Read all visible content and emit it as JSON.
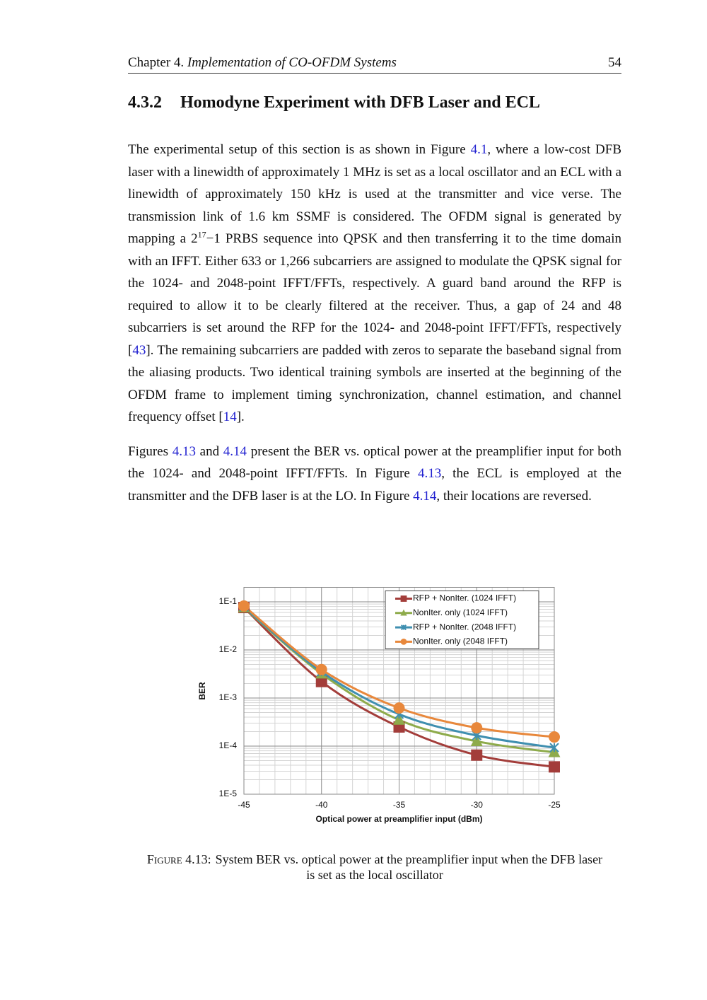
{
  "header": {
    "chapter": "Chapter 4.",
    "title": "Implementation of CO-OFDM Systems",
    "page": "54"
  },
  "section": {
    "number": "4.3.2",
    "title": "Homodyne Experiment with DFB Laser and ECL"
  },
  "paragraphs": [
    [
      {
        "text": "The experimental setup of this section is as shown in Figure "
      },
      {
        "text": "4.1",
        "color": "#2020d0"
      },
      {
        "text": ", where a low-cost DFB laser with a linewidth of approximately 1 MHz is set as a local oscillator and an ECL with a linewidth of approximately 150 kHz is used at the transmitter and vice verse. The transmission link of 1.6 km SSMF is considered. The OFDM signal is generated by mapping a 2"
      },
      {
        "text": "17",
        "sup": true
      },
      {
        "text": "−1 PRBS sequence into QPSK and then transferring it to the time domain with an IFFT. Either 633 or 1,266 subcarriers are assigned to modulate the QPSK signal for the 1024- and 2048-point IFFT/FFTs, respectively. A guard band around the RFP is required to allow it to be clearly filtered at the receiver. Thus, a gap of 24 and 48 subcarriers is set around the RFP for the 1024- and 2048-point IFFT/FFTs, respectively ["
      },
      {
        "text": "43",
        "color": "#2020d0"
      },
      {
        "text": "]. The remaining subcarriers are padded with zeros to separate the baseband signal from the aliasing products. Two identical training symbols are inserted at the beginning of the OFDM frame to implement timing synchronization, channel estimation, and channel frequency offset ["
      },
      {
        "text": "14",
        "color": "#2020d0"
      },
      {
        "text": "]."
      }
    ],
    [
      {
        "text": "Figures "
      },
      {
        "text": "4.13",
        "color": "#2020d0"
      },
      {
        "text": " and "
      },
      {
        "text": "4.14",
        "color": "#2020d0"
      },
      {
        "text": " present the BER vs. optical power at the preamplifier input for both the 1024- and 2048-point IFFT/FFTs. In Figure "
      },
      {
        "text": "4.13",
        "color": "#2020d0"
      },
      {
        "text": ", the ECL is employed at the transmitter and the DFB laser is at the LO. In Figure "
      },
      {
        "text": "4.14",
        "color": "#2020d0"
      },
      {
        "text": ", their locations are reversed."
      }
    ]
  ],
  "chart_data": {
    "type": "line",
    "xlabel": "Optical power at preamplifier input (dBm)",
    "ylabel": "BER",
    "x": [
      -45,
      -40,
      -35,
      -30,
      -25
    ],
    "xlim": [
      -45,
      -25
    ],
    "xticks": [
      -45,
      -40,
      -35,
      -30,
      -25
    ],
    "xminorticks": [
      -44,
      -43,
      -42,
      -41,
      -39,
      -38,
      -37,
      -36,
      -34,
      -33,
      -32,
      -31,
      -29,
      -28,
      -27,
      -26
    ],
    "ylim": [
      1e-05,
      0.2
    ],
    "yscale": "log",
    "yticks": [
      {
        "value": 1e-05,
        "label": "1E-5"
      },
      {
        "value": 0.0001,
        "label": "1E-4"
      },
      {
        "value": 0.001,
        "label": "1E-3"
      },
      {
        "value": 0.01,
        "label": "1E-2"
      },
      {
        "value": 0.1,
        "label": "1E-1"
      }
    ],
    "yminorticks": [
      2e-05,
      3e-05,
      4e-05,
      5e-05,
      6e-05,
      7e-05,
      8e-05,
      9e-05,
      0.0002,
      0.0003,
      0.0004,
      0.0005,
      0.0006,
      0.0007,
      0.0008,
      0.0009,
      0.002,
      0.003,
      0.004,
      0.005,
      0.006,
      0.007,
      0.008,
      0.009,
      0.02,
      0.03,
      0.04,
      0.05,
      0.06,
      0.07,
      0.08,
      0.09
    ],
    "grid": true,
    "legend": "upper right",
    "series": [
      {
        "name": "RFP + NonIter. (1024 IFFT)",
        "color": "#a33d3a",
        "marker": "square",
        "values": [
          0.076,
          0.0022,
          0.00025,
          6.5e-05,
          3.7e-05
        ]
      },
      {
        "name": "NonIter. only (1024 IFFT)",
        "color": "#8eab4b",
        "marker": "triangle",
        "values": [
          0.076,
          0.0032,
          0.00035,
          0.000126,
          7.4e-05
        ]
      },
      {
        "name": "RFP + NonIter. (2048 IFFT)",
        "color": "#3f8fb0",
        "marker": "star",
        "values": [
          0.078,
          0.0035,
          0.00046,
          0.000166,
          9.3e-05
        ]
      },
      {
        "name": "NonIter. only (2048 IFFT)",
        "color": "#e8883c",
        "marker": "circle",
        "values": [
          0.082,
          0.0039,
          0.00062,
          0.00024,
          0.000155
        ]
      }
    ]
  },
  "caption": {
    "label": "Figure 4.13:",
    "text": "System BER vs. optical power at the preamplifier input when the DFB laser is set as the local oscillator"
  }
}
